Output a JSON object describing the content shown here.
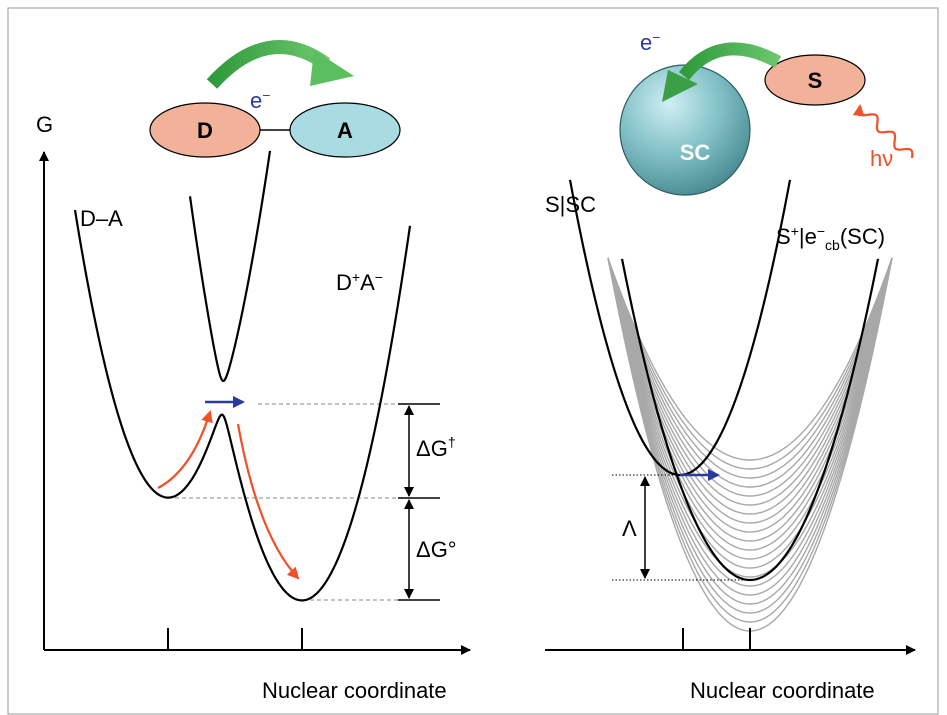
{
  "left_panel": {
    "electron": {
      "base": "e",
      "sup": "−"
    },
    "donor": "D",
    "acceptor": "A",
    "y_axis_label": "G",
    "reactant_curve": "D–A",
    "product_curve": {
      "base1": "D",
      "sup1": "+",
      "base2": "A",
      "sup2": "−"
    },
    "activation_energy": {
      "base": "ΔG",
      "sup": "†"
    },
    "free_energy": "ΔG°",
    "x_axis_label": "Nuclear coordinate"
  },
  "right_panel": {
    "electron": {
      "base": "e",
      "sup": "−"
    },
    "semiconductor": "SC",
    "sensitizer": "S",
    "photon": "hν",
    "reactant_curve": "S|SC",
    "product_curve": {
      "base1": "S",
      "sup1": "+",
      "base2": "|e",
      "sup2": "−",
      "sub": "cb",
      "base3": "(SC)"
    },
    "reorganization_energy": "Λ",
    "x_axis_label": "Nuclear coordinate"
  }
}
